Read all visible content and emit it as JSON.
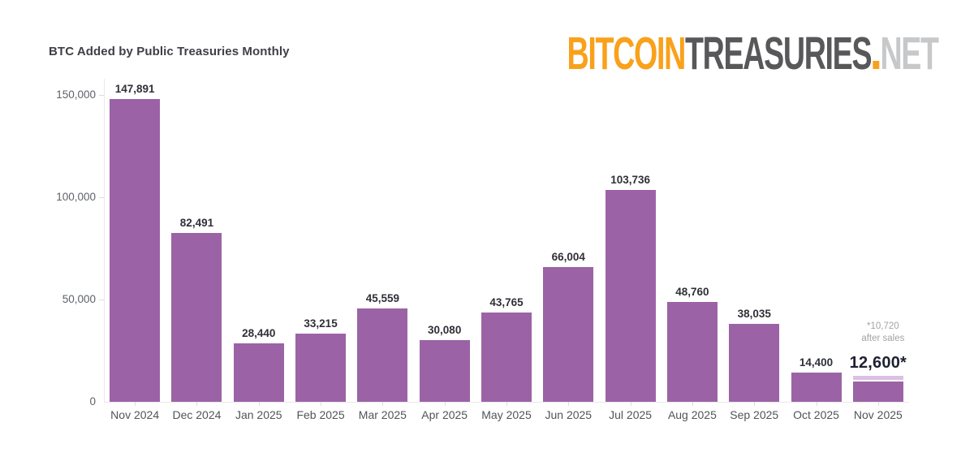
{
  "header": {
    "title": "BTC Added by Public Treasuries Monthly",
    "logo": {
      "part_bitcoin": "BITCOIN",
      "part_treasuries": "TREASURIES",
      "part_net": "NET",
      "color_orange": "#f9a11b",
      "color_dark": "#58585a",
      "color_light": "#c7c8ca"
    }
  },
  "chart_data": {
    "type": "bar",
    "title": "BTC Added by Public Treasuries Monthly",
    "categories": [
      "Nov 2024",
      "Dec 2024",
      "Jan 2025",
      "Feb 2025",
      "Mar 2025",
      "Apr 2025",
      "May 2025",
      "Jun 2025",
      "Jul 2025",
      "Aug 2025",
      "Sep 2025",
      "Oct 2025",
      "Nov 2025"
    ],
    "values": [
      147891,
      82491,
      28440,
      33215,
      45559,
      30080,
      43765,
      66004,
      103736,
      48760,
      38035,
      14400,
      12600
    ],
    "data_labels": [
      "147,891",
      "82,491",
      "28,440",
      "33,215",
      "45,559",
      "30,080",
      "43,765",
      "66,004",
      "103,736",
      "48,760",
      "38,035",
      "14,400",
      "12,600*"
    ],
    "xlabel": "",
    "ylabel": "",
    "ylim": [
      0,
      150000
    ],
    "yticks": [
      0,
      50000,
      100000,
      150000
    ],
    "ytick_labels": [
      "0",
      "50,000",
      "100,000",
      "150,000"
    ],
    "grid": false,
    "legend": false,
    "bar_color": "#9b63a5",
    "last_bar": {
      "category": "Nov 2025",
      "total_value": 12600,
      "after_sales_value": 10720,
      "label": "12,600*",
      "annotation_line1": "*10,720",
      "annotation_line2": "after sales",
      "cap_color": "#dcc0e4"
    }
  }
}
